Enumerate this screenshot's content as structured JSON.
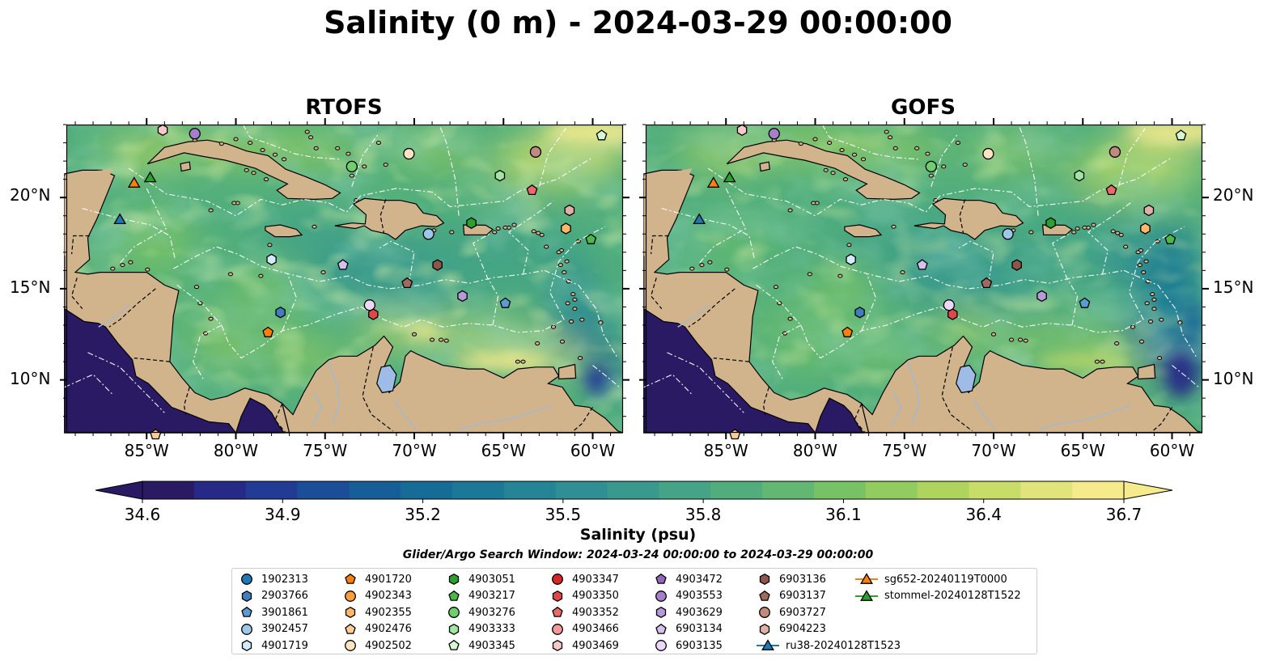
{
  "title": "Salinity (0 m) - 2024-03-29 00:00:00",
  "panels": [
    {
      "title": "RTOFS",
      "variant": "rtofs"
    },
    {
      "title": "GOFS",
      "variant": "gofs"
    }
  ],
  "axes": {
    "lat_ticks": [
      "20°N",
      "15°N",
      "10°N"
    ],
    "lat_values": [
      20,
      15,
      10
    ],
    "lon_ticks": [
      "85°W",
      "80°W",
      "75°W",
      "70°W",
      "65°W",
      "60°W"
    ],
    "lon_values": [
      -85,
      -80,
      -75,
      -70,
      -65,
      -60
    ],
    "lon_range": [
      -89.5,
      -58.3
    ],
    "lat_range": [
      7.1,
      24
    ]
  },
  "colorbar": {
    "label": "Salinity (psu)",
    "ticks": [
      "34.6",
      "34.9",
      "35.2",
      "35.5",
      "35.8",
      "36.1",
      "36.4",
      "36.7"
    ],
    "range": [
      34.6,
      36.7
    ],
    "extend": "both",
    "colors": [
      "#2a1a63",
      "#262a86",
      "#223c96",
      "#1c4d98",
      "#175e98",
      "#166b97",
      "#1b7896",
      "#258495",
      "#2f8f92",
      "#39998d",
      "#44a485",
      "#51ae7c",
      "#62b872",
      "#78c266",
      "#92cb5f",
      "#aed45e",
      "#c8dc68",
      "#e1e47a",
      "#f5ea8c"
    ]
  },
  "search_window": "Glider/Argo Search Window: 2024-03-24 00:00:00 to 2024-03-29 00:00:00",
  "legend": {
    "entries": [
      {
        "label": "1902313",
        "marker": "circle",
        "color": "#1f77b4"
      },
      {
        "label": "2903766",
        "marker": "hexagon",
        "color": "#3f7fbf"
      },
      {
        "label": "3901861",
        "marker": "pentagon",
        "color": "#5a9bd4"
      },
      {
        "label": "3902457",
        "marker": "circle",
        "color": "#9ec8ea"
      },
      {
        "label": "4901719",
        "marker": "hexagon",
        "color": "#d2ecfb"
      },
      {
        "label": "4901720",
        "marker": "pentagon",
        "color": "#ff7f0e"
      },
      {
        "label": "4902343",
        "marker": "circle",
        "color": "#ff9e3a"
      },
      {
        "label": "4902355",
        "marker": "hexagon",
        "color": "#ffb86a"
      },
      {
        "label": "4902476",
        "marker": "pentagon",
        "color": "#ffcd96"
      },
      {
        "label": "4902502",
        "marker": "circle",
        "color": "#ffe4c2"
      },
      {
        "label": "4903051",
        "marker": "hexagon",
        "color": "#2ca02c"
      },
      {
        "label": "4903217",
        "marker": "pentagon",
        "color": "#4cb84c"
      },
      {
        "label": "4903276",
        "marker": "circle",
        "color": "#6fcf6f"
      },
      {
        "label": "4903333",
        "marker": "hexagon",
        "color": "#a1e6a1"
      },
      {
        "label": "4903345",
        "marker": "pentagon",
        "color": "#d4f8d4"
      },
      {
        "label": "4903347",
        "marker": "circle",
        "color": "#d62728"
      },
      {
        "label": "4903350",
        "marker": "hexagon",
        "color": "#e04848"
      },
      {
        "label": "4903352",
        "marker": "pentagon",
        "color": "#ea6a6a"
      },
      {
        "label": "4903466",
        "marker": "circle",
        "color": "#f29a9a"
      },
      {
        "label": "4903469",
        "marker": "hexagon",
        "color": "#f8c8c8"
      },
      {
        "label": "4903472",
        "marker": "pentagon",
        "color": "#9467bd"
      },
      {
        "label": "4903553",
        "marker": "circle",
        "color": "#a67fcc"
      },
      {
        "label": "4903629",
        "marker": "hexagon",
        "color": "#b99ad9"
      },
      {
        "label": "6903134",
        "marker": "pentagon",
        "color": "#d6c1ee"
      },
      {
        "label": "6903135",
        "marker": "circle",
        "color": "#ecd8fa"
      },
      {
        "label": "6903136",
        "marker": "hexagon",
        "color": "#8c564b"
      },
      {
        "label": "6903137",
        "marker": "pentagon",
        "color": "#a06a5e"
      },
      {
        "label": "6903727",
        "marker": "circle",
        "color": "#c08a7e"
      },
      {
        "label": "6904223",
        "marker": "hexagon",
        "color": "#e0b0a6"
      },
      {
        "label": "ru38-20240128T1523",
        "marker": "line-triangle",
        "color": "#1f77b4"
      },
      {
        "label": "sg652-20240119T0000",
        "marker": "line-triangle",
        "color": "#ff7f0e"
      },
      {
        "label": "stommel-20240128T1522",
        "marker": "line-triangle",
        "color": "#2ca02c"
      }
    ]
  },
  "floats": [
    {
      "label": "2903766",
      "lon": -77.5,
      "lat": 13.7
    },
    {
      "label": "4901720",
      "lon": -78.2,
      "lat": 12.6
    },
    {
      "label": "4901719",
      "lon": -78.0,
      "lat": 16.6
    },
    {
      "label": "6903134",
      "lon": -74.0,
      "lat": 16.3
    },
    {
      "label": "6903135",
      "lon": -72.5,
      "lat": 14.1
    },
    {
      "label": "4903350",
      "lon": -72.3,
      "lat": 13.6
    },
    {
      "label": "6903137",
      "lon": -70.4,
      "lat": 15.3
    },
    {
      "label": "6903136",
      "lon": -68.7,
      "lat": 16.3
    },
    {
      "label": "4903629",
      "lon": -67.3,
      "lat": 14.6
    },
    {
      "label": "3901861",
      "lon": -64.9,
      "lat": 14.2
    },
    {
      "label": "3902457",
      "lon": -69.2,
      "lat": 18.0
    },
    {
      "label": "4903051",
      "lon": -66.8,
      "lat": 18.6
    },
    {
      "label": "4903333",
      "lon": -65.2,
      "lat": 21.2
    },
    {
      "label": "4903352",
      "lon": -63.4,
      "lat": 20.4
    },
    {
      "label": "6903727",
      "lon": -63.2,
      "lat": 22.5
    },
    {
      "label": "6904223",
      "lon": -61.3,
      "lat": 19.3
    },
    {
      "label": "4902355",
      "lon": -61.5,
      "lat": 18.3
    },
    {
      "label": "4903217",
      "lon": -60.1,
      "lat": 17.7
    },
    {
      "label": "4903345",
      "lon": -59.5,
      "lat": 23.4
    },
    {
      "label": "4902502",
      "lon": -70.3,
      "lat": 22.4
    },
    {
      "label": "4903276",
      "lon": -73.5,
      "lat": 21.7
    },
    {
      "label": "4903553",
      "lon": -82.3,
      "lat": 23.5
    },
    {
      "label": "4903469",
      "lon": -84.1,
      "lat": 23.7
    },
    {
      "label": "4902476",
      "lon": -84.5,
      "lat": 7.0
    }
  ],
  "gliders": [
    {
      "label": "ru38-20240128T1523",
      "lon": -86.5,
      "lat": 18.8
    },
    {
      "label": "sg652-20240119T0000",
      "lon": -85.7,
      "lat": 20.8
    },
    {
      "label": "stommel-20240128T1522",
      "lon": -84.8,
      "lat": 21.1
    }
  ],
  "style": {
    "land": "#d2b48c",
    "pacific": "#2a1a63",
    "lake": "#9ebce6",
    "river": "#a5b8cc"
  }
}
